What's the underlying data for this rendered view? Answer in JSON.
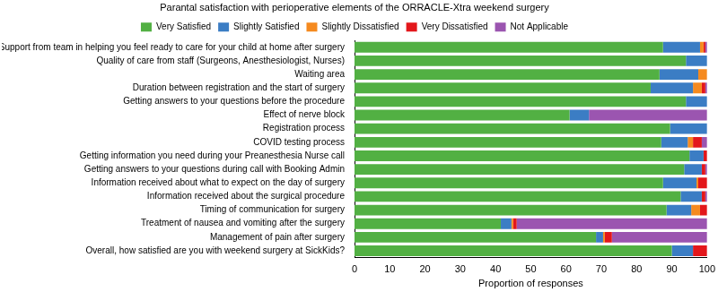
{
  "chart_data": {
    "type": "bar",
    "title": "Parantal satisfaction with perioperative elements of the ORRACLE-Xtra weekend surgery",
    "xlabel": "Proportion of responses",
    "orientation": "horizontal",
    "stacked": true,
    "grid": false,
    "legend": "top",
    "xlim": [
      0,
      100
    ],
    "xticks": [
      0,
      10,
      20,
      30,
      40,
      50,
      60,
      70,
      80,
      90,
      100
    ],
    "categories": [
      "Support from team in helping you feel ready to care for your child at home after surgery",
      "Quality of care from staff (Surgeons, Anesthesiologist, Nurses)",
      "Waiting area",
      "Duration between registration and the start of surgery",
      "Getting answers to your questions before the procedure",
      "Effect of nerve block",
      "Registration process",
      "COVID testing process",
      "Getting information you need during your Preanesthesia Nurse call",
      "Getting answers to your questions during call with Booking Admin",
      "Information received about what to expect on the day of surgery",
      "Information received about the surgical procedure",
      "Timing of communication for surgery",
      "Treatment of nausea and vomiting after the surgery",
      "Management of pain after surgery",
      "Overall, how satisfied are you with weekend surgery at SickKids?"
    ],
    "series": [
      {
        "name": "Very Satisfied",
        "color": "#52b043",
        "values": [
          87.5,
          94,
          86.5,
          84,
          94,
          61,
          89.5,
          87,
          95,
          93.5,
          87.5,
          92.5,
          88.5,
          41.5,
          68.5,
          90
        ]
      },
      {
        "name": "Slightly Satisfied",
        "color": "#3b7dc4",
        "values": [
          10.5,
          6,
          11,
          12,
          6,
          5.5,
          10.5,
          7.5,
          4,
          5,
          9.5,
          6,
          7,
          3,
          2,
          6
        ]
      },
      {
        "name": "Slightly Dissatisfied",
        "color": "#f58a1f",
        "values": [
          1,
          0,
          2.5,
          2.5,
          0,
          0,
          0,
          1.5,
          0,
          0,
          0.5,
          0,
          2.5,
          0.5,
          0.5,
          0
        ]
      },
      {
        "name": "Very Dissatisfied",
        "color": "#e3171b",
        "values": [
          0.5,
          0,
          0,
          1,
          0,
          0,
          0,
          2.5,
          1,
          1,
          2.5,
          1,
          2,
          1,
          2,
          4
        ]
      },
      {
        "name": "Not Applicable",
        "color": "#9b55b0",
        "values": [
          0.5,
          0,
          0,
          0.5,
          0,
          33.5,
          0,
          1.5,
          0,
          0.5,
          0,
          0.5,
          0,
          54,
          27,
          0
        ]
      }
    ]
  }
}
